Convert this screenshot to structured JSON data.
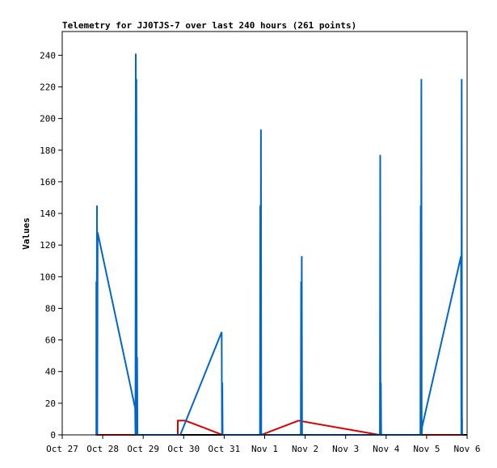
{
  "chart_data": {
    "type": "line",
    "title": "Telemetry for JJ0TJS-7 over last 240 hours (261 points)",
    "xlabel": "",
    "ylabel": "Values",
    "ylim": [
      0,
      255
    ],
    "yticks": [
      0,
      20,
      40,
      60,
      80,
      100,
      120,
      140,
      160,
      180,
      200,
      220,
      240
    ],
    "xlim": [
      0,
      240
    ],
    "xticks": [
      {
        "label": "Oct 27",
        "h": 0
      },
      {
        "label": "Oct 28",
        "h": 24
      },
      {
        "label": "Oct 29",
        "h": 48
      },
      {
        "label": "Oct 30",
        "h": 72
      },
      {
        "label": "Oct 31",
        "h": 96
      },
      {
        "label": "Nov 1",
        "h": 120
      },
      {
        "label": "Nov 2",
        "h": 144
      },
      {
        "label": "Nov 3",
        "h": 168
      },
      {
        "label": "Nov 4",
        "h": 192
      },
      {
        "label": "Nov 5",
        "h": 216
      },
      {
        "label": "Nov 6",
        "h": 240
      }
    ],
    "grid": false,
    "colors": {
      "series_blue": "#0066cc",
      "series_red": "#dd0000",
      "series_black": "#000000"
    },
    "series": [
      {
        "color": "#000000",
        "points": [
          [
            20,
            0
          ],
          [
            240,
            0
          ]
        ]
      },
      {
        "color": "#dd0000",
        "points": [
          [
            20,
            0
          ],
          [
            68.5,
            0
          ],
          [
            68.5,
            9
          ],
          [
            73,
            9
          ],
          [
            95,
            0
          ],
          [
            118,
            0
          ],
          [
            140,
            9
          ],
          [
            188,
            0
          ],
          [
            237,
            0
          ],
          [
            237,
            10
          ]
        ]
      },
      {
        "color": "#0066cc",
        "points": [
          [
            20.2,
            0
          ],
          [
            20.2,
            97
          ],
          [
            20.4,
            0
          ],
          [
            20.6,
            145
          ],
          [
            20.8,
            0
          ],
          [
            21,
            128
          ],
          [
            43.2,
            17
          ],
          [
            43.4,
            0
          ],
          [
            43.6,
            241
          ],
          [
            43.8,
            0
          ],
          [
            44,
            225
          ],
          [
            44.2,
            0
          ],
          [
            44.4,
            49
          ],
          [
            44.6,
            0
          ],
          [
            46,
            0
          ],
          [
            70,
            0
          ],
          [
            94.5,
            65
          ],
          [
            94.7,
            0
          ],
          [
            94.9,
            33
          ],
          [
            95.1,
            0
          ],
          [
            117.2,
            0
          ],
          [
            117.4,
            145
          ],
          [
            117.6,
            0
          ],
          [
            117.8,
            193
          ],
          [
            118,
            0
          ],
          [
            141.4,
            0
          ],
          [
            141.6,
            97
          ],
          [
            141.8,
            0
          ],
          [
            142,
            113
          ],
          [
            142.2,
            0
          ],
          [
            188.3,
            0
          ],
          [
            188.5,
            177
          ],
          [
            188.7,
            0
          ],
          [
            188.9,
            33
          ],
          [
            189.1,
            0
          ],
          [
            212.3,
            0
          ],
          [
            212.5,
            145
          ],
          [
            212.7,
            0
          ],
          [
            212.9,
            225
          ],
          [
            213.1,
            0
          ],
          [
            213.3,
            5
          ],
          [
            236.4,
            113
          ],
          [
            236.6,
            0
          ],
          [
            236.8,
            225
          ],
          [
            237,
            0
          ]
        ]
      }
    ]
  }
}
